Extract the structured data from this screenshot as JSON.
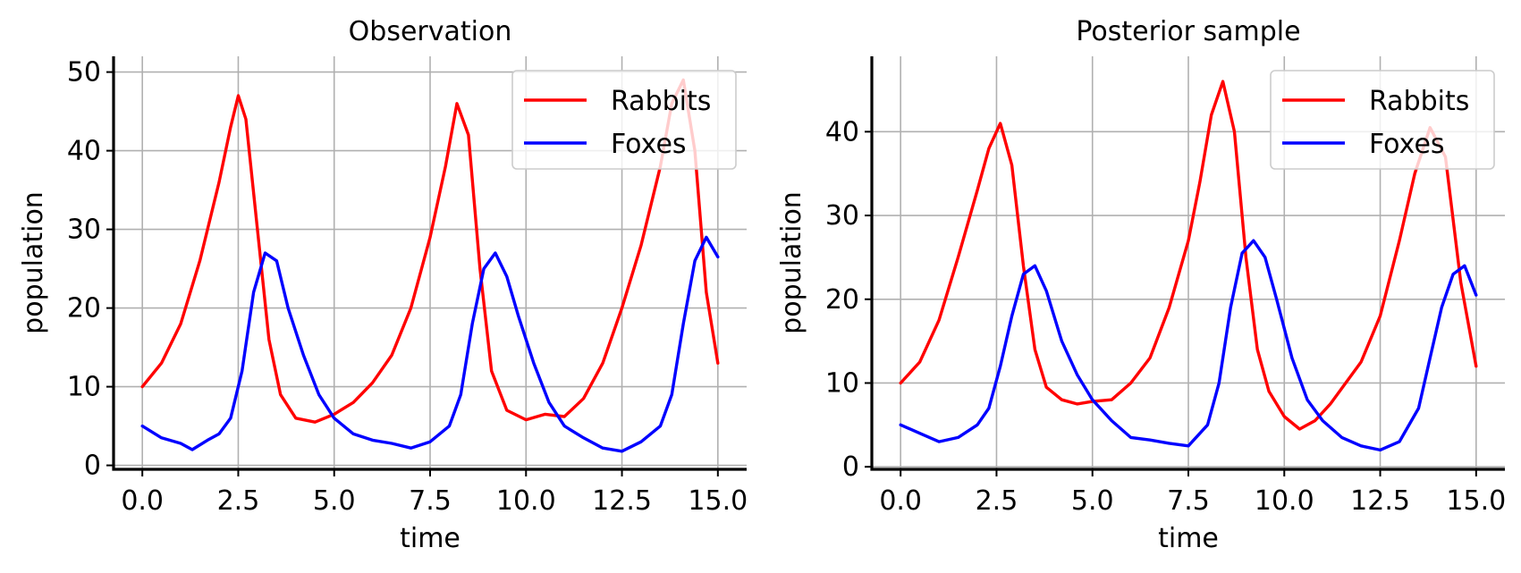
{
  "chart_data": [
    {
      "type": "line",
      "title": "Observation",
      "xlabel": "time",
      "ylabel": "population",
      "xlim": [
        -0.75,
        15.75
      ],
      "ylim": [
        -0.5,
        52
      ],
      "xticks": [
        0.0,
        2.5,
        5.0,
        7.5,
        10.0,
        12.5,
        15.0
      ],
      "xtick_labels": [
        "0.0",
        "2.5",
        "5.0",
        "7.5",
        "10.0",
        "12.5",
        "15.0"
      ],
      "yticks": [
        0,
        10,
        20,
        30,
        40,
        50
      ],
      "ytick_labels": [
        "0",
        "10",
        "20",
        "30",
        "40",
        "50"
      ],
      "grid": true,
      "legend_position": "top-right",
      "series": [
        {
          "name": "Rabbits",
          "color": "#ff0000",
          "x": [
            0,
            0.5,
            1.0,
            1.5,
            2.0,
            2.3,
            2.5,
            2.7,
            3.0,
            3.3,
            3.6,
            4.0,
            4.5,
            5.0,
            5.5,
            6.0,
            6.5,
            7.0,
            7.5,
            7.9,
            8.2,
            8.5,
            8.8,
            9.1,
            9.5,
            10.0,
            10.5,
            11.0,
            11.5,
            12.0,
            12.5,
            13.0,
            13.5,
            13.8,
            14.1,
            14.4,
            14.7,
            15.0
          ],
          "y": [
            10,
            13,
            18,
            26,
            36,
            43,
            47,
            44,
            30,
            16,
            9,
            6,
            5.5,
            6.5,
            8,
            10.5,
            14,
            20,
            29,
            38,
            46,
            42,
            25,
            12,
            7,
            5.8,
            6.5,
            6.2,
            8.5,
            13,
            20,
            28,
            38,
            46,
            49,
            40,
            22,
            13
          ]
        },
        {
          "name": "Foxes",
          "color": "#0000ff",
          "x": [
            0,
            0.5,
            1.0,
            1.3,
            1.7,
            2.0,
            2.3,
            2.6,
            2.9,
            3.2,
            3.5,
            3.8,
            4.2,
            4.6,
            5.0,
            5.5,
            6.0,
            6.5,
            7.0,
            7.5,
            8.0,
            8.3,
            8.6,
            8.9,
            9.2,
            9.5,
            9.8,
            10.2,
            10.6,
            11.0,
            11.5,
            12.0,
            12.5,
            13.0,
            13.5,
            13.8,
            14.1,
            14.4,
            14.7,
            15.0
          ],
          "y": [
            5,
            3.5,
            2.8,
            2,
            3.2,
            4,
            6,
            12,
            22,
            27,
            26,
            20,
            14,
            9,
            6,
            4,
            3.2,
            2.8,
            2.2,
            3,
            5,
            9,
            18,
            25,
            27,
            24,
            19,
            13,
            8,
            5,
            3.5,
            2.2,
            1.8,
            3,
            5,
            9,
            18,
            26,
            29,
            26.5
          ]
        }
      ]
    },
    {
      "type": "line",
      "title": "Posterior sample",
      "xlabel": "time",
      "ylabel": "population",
      "xlim": [
        -0.75,
        15.75
      ],
      "ylim": [
        -0.3,
        49
      ],
      "xticks": [
        0.0,
        2.5,
        5.0,
        7.5,
        10.0,
        12.5,
        15.0
      ],
      "xtick_labels": [
        "0.0",
        "2.5",
        "5.0",
        "7.5",
        "10.0",
        "12.5",
        "15.0"
      ],
      "yticks": [
        0,
        10,
        20,
        30,
        40
      ],
      "ytick_labels": [
        "0",
        "10",
        "20",
        "30",
        "40"
      ],
      "grid": true,
      "legend_position": "top-right",
      "series": [
        {
          "name": "Rabbits",
          "color": "#ff0000",
          "x": [
            0,
            0.5,
            1.0,
            1.5,
            2.0,
            2.3,
            2.6,
            2.9,
            3.2,
            3.5,
            3.8,
            4.2,
            4.6,
            5.0,
            5.5,
            6.0,
            6.5,
            7.0,
            7.5,
            7.8,
            8.1,
            8.4,
            8.7,
            9.0,
            9.3,
            9.6,
            10.0,
            10.4,
            10.8,
            11.2,
            11.6,
            12.0,
            12.5,
            13.0,
            13.4,
            13.8,
            14.2,
            14.6,
            15.0
          ],
          "y": [
            10,
            12.5,
            17.5,
            25,
            33,
            38,
            41,
            36,
            24,
            14,
            9.5,
            8,
            7.5,
            7.8,
            8,
            10,
            13,
            19,
            27,
            34,
            42,
            46,
            40,
            25,
            14,
            9,
            6,
            4.5,
            5.5,
            7.5,
            10,
            12.5,
            18,
            27,
            35,
            40.5,
            37,
            22,
            12
          ]
        },
        {
          "name": "Foxes",
          "color": "#0000ff",
          "x": [
            0,
            0.5,
            1.0,
            1.5,
            2.0,
            2.3,
            2.6,
            2.9,
            3.2,
            3.5,
            3.8,
            4.2,
            4.6,
            5.0,
            5.5,
            6.0,
            6.5,
            7.0,
            7.5,
            8.0,
            8.3,
            8.6,
            8.9,
            9.2,
            9.5,
            9.8,
            10.2,
            10.6,
            11.0,
            11.5,
            12.0,
            12.5,
            13.0,
            13.5,
            13.8,
            14.1,
            14.4,
            14.7,
            15.0
          ],
          "y": [
            5,
            4,
            3,
            3.5,
            5,
            7,
            12,
            18,
            23,
            24,
            21,
            15,
            11,
            8,
            5.5,
            3.5,
            3.2,
            2.8,
            2.5,
            5,
            10,
            19,
            25.5,
            27,
            25,
            20,
            13,
            8,
            5.5,
            3.5,
            2.5,
            2,
            3,
            7,
            13,
            19,
            23,
            24,
            20.5
          ]
        }
      ]
    }
  ]
}
